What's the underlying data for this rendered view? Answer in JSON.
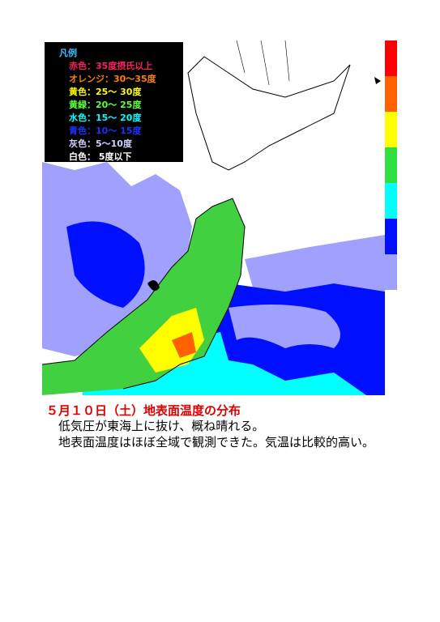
{
  "legend": {
    "title": "凡例",
    "items": [
      {
        "label": "赤色：35度摂氏以上",
        "color": "#ff2060"
      },
      {
        "label": "オレンジ：30～35度",
        "color": "#ff8000"
      },
      {
        "label": "黄色：25～ 30度",
        "color": "#ffff00"
      },
      {
        "label": "黄緑：20～ 25度",
        "color": "#60ff40"
      },
      {
        "label": "水色：15～ 20度",
        "color": "#00ffff"
      },
      {
        "label": "青色：10～ 15度",
        "color": "#2030ff"
      },
      {
        "label": "灰色：5～10度",
        "color": "#d0d0ff"
      },
      {
        "label": "白色： 5度以下",
        "color": "#ffffff"
      }
    ]
  },
  "scale": [
    "#ff0000",
    "#ff6000",
    "#ffff00",
    "#30e040",
    "#00ffff",
    "#0010ff",
    "#a0a0ff"
  ],
  "caption": "５月１０日（土）地表面温度の分布",
  "body": [
    "低気圧が東海上に抜け、概ね晴れる。",
    "地表面温度はほぼ全域で観測できた。気温は比較的高い。"
  ]
}
